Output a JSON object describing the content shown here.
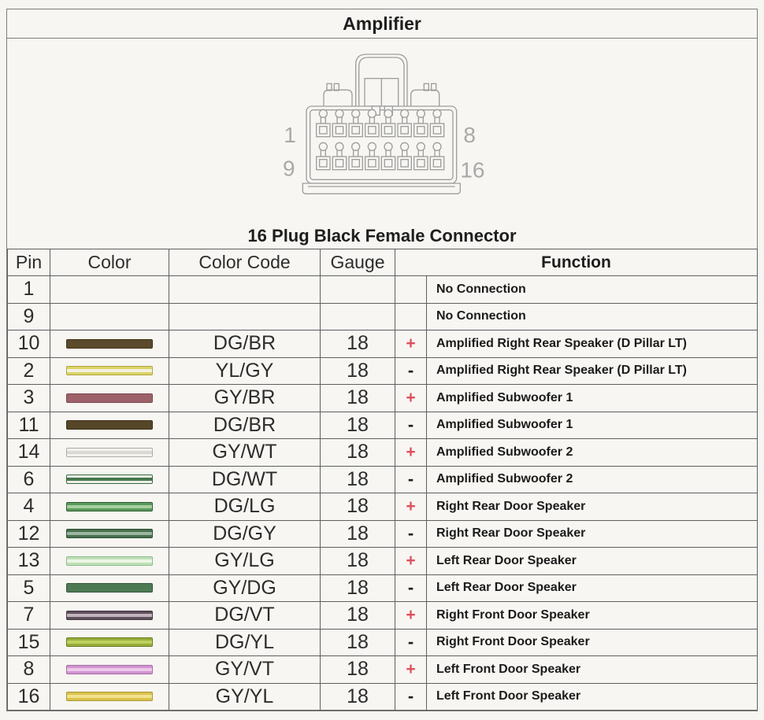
{
  "page": {
    "title": "Amplifier"
  },
  "connector": {
    "heading": "16 Plug Black Female Connector",
    "labels": {
      "top_left": "1",
      "top_right": "8",
      "bottom_left": "9",
      "bottom_right": "16"
    }
  },
  "table": {
    "headers": {
      "pin": "Pin",
      "color": "Color",
      "color_code": "Color Code",
      "gauge": "Gauge",
      "function": "Function"
    },
    "rows": [
      {
        "pin": "1",
        "code": "",
        "gauge": "",
        "polarity": "",
        "function": "No Connection",
        "swatch": null
      },
      {
        "pin": "9",
        "code": "",
        "gauge": "",
        "polarity": "",
        "function": "No Connection",
        "swatch": null
      },
      {
        "pin": "10",
        "code": "DG/BR",
        "gauge": "18",
        "polarity": "+",
        "function": "Amplified Right Rear Speaker (D Pillar LT)",
        "swatch": {
          "base": "#5c4a2c",
          "stripe": "",
          "border": "#423215"
        }
      },
      {
        "pin": "2",
        "code": "YL/GY",
        "gauge": "18",
        "polarity": "-",
        "function": "Amplified Right Rear Speaker (D Pillar LT)",
        "swatch": {
          "base": "#dbd368",
          "stripe": "#f3f1e0",
          "border": "#b0a83f"
        }
      },
      {
        "pin": "3",
        "code": "GY/BR",
        "gauge": "18",
        "polarity": "+",
        "function": "Amplified Subwoofer 1",
        "swatch": {
          "base": "#9d6169",
          "stripe": "",
          "border": "#7c474f"
        }
      },
      {
        "pin": "11",
        "code": "DG/BR",
        "gauge": "18",
        "polarity": "-",
        "function": "Amplified Subwoofer 1",
        "swatch": {
          "base": "#564628",
          "stripe": "",
          "border": "#3e3014"
        }
      },
      {
        "pin": "14",
        "code": "GY/WT",
        "gauge": "18",
        "polarity": "+",
        "function": "Amplified Subwoofer 2",
        "swatch": {
          "base": "#f2f1ed",
          "stripe": "#dbd9d4",
          "border": "#aeaca7"
        }
      },
      {
        "pin": "6",
        "code": "DG/WT",
        "gauge": "18",
        "polarity": "-",
        "function": "Amplified Subwoofer 2",
        "swatch": {
          "base": "#edefe7",
          "stripe": "#47774d",
          "border": "#3d6a44"
        }
      },
      {
        "pin": "4",
        "code": "DG/LG",
        "gauge": "18",
        "polarity": "+",
        "function": "Right Rear Door Speaker",
        "swatch": {
          "base": "#5a9a5d",
          "stripe": "#a7cfa0",
          "border": "#2e5c34"
        }
      },
      {
        "pin": "12",
        "code": "DG/GY",
        "gauge": "18",
        "polarity": "-",
        "function": "Right Rear Door Speaker",
        "swatch": {
          "base": "#47714d",
          "stripe": "#9cb59f",
          "border": "#2d5037"
        }
      },
      {
        "pin": "13",
        "code": "GY/LG",
        "gauge": "18",
        "polarity": "+",
        "function": "Left Rear Door Speaker",
        "swatch": {
          "base": "#c0e0b9",
          "stripe": "#ebf5e5",
          "border": "#8cbd88"
        }
      },
      {
        "pin": "5",
        "code": "GY/DG",
        "gauge": "18",
        "polarity": "-",
        "function": "Left Rear Door Speaker",
        "swatch": {
          "base": "#4d7a53",
          "stripe": "",
          "border": "#34573b"
        }
      },
      {
        "pin": "7",
        "code": "DG/VT",
        "gauge": "18",
        "polarity": "+",
        "function": "Right Front  Door Speaker",
        "swatch": {
          "base": "#5f4f5b",
          "stripe": "#c2b3bc",
          "border": "#453844"
        }
      },
      {
        "pin": "15",
        "code": "DG/YL",
        "gauge": "18",
        "polarity": "-",
        "function": "Right Front  Door Speaker",
        "swatch": {
          "base": "#97ad3b",
          "stripe": "#bdd25d",
          "border": "#6b7c1f"
        }
      },
      {
        "pin": "8",
        "code": "GY/VT",
        "gauge": "18",
        "polarity": "+",
        "function": "Left Front  Door Speaker",
        "swatch": {
          "base": "#d095cf",
          "stripe": "#ecc9ea",
          "border": "#a76da7"
        }
      },
      {
        "pin": "16",
        "code": "GY/YL",
        "gauge": "18",
        "polarity": "-",
        "function": "Left Front  Door Speaker",
        "swatch": {
          "base": "#dac250",
          "stripe": "#f1e28d",
          "border": "#ae9732"
        }
      }
    ]
  },
  "colors": {
    "polarity_plus": "#dd4f5c",
    "polarity_minus": "#1f1f1f",
    "grid_line": "#5f5f5f",
    "diagram_line": "#9e9e9e",
    "diagram_label": "#a9a9a9"
  }
}
